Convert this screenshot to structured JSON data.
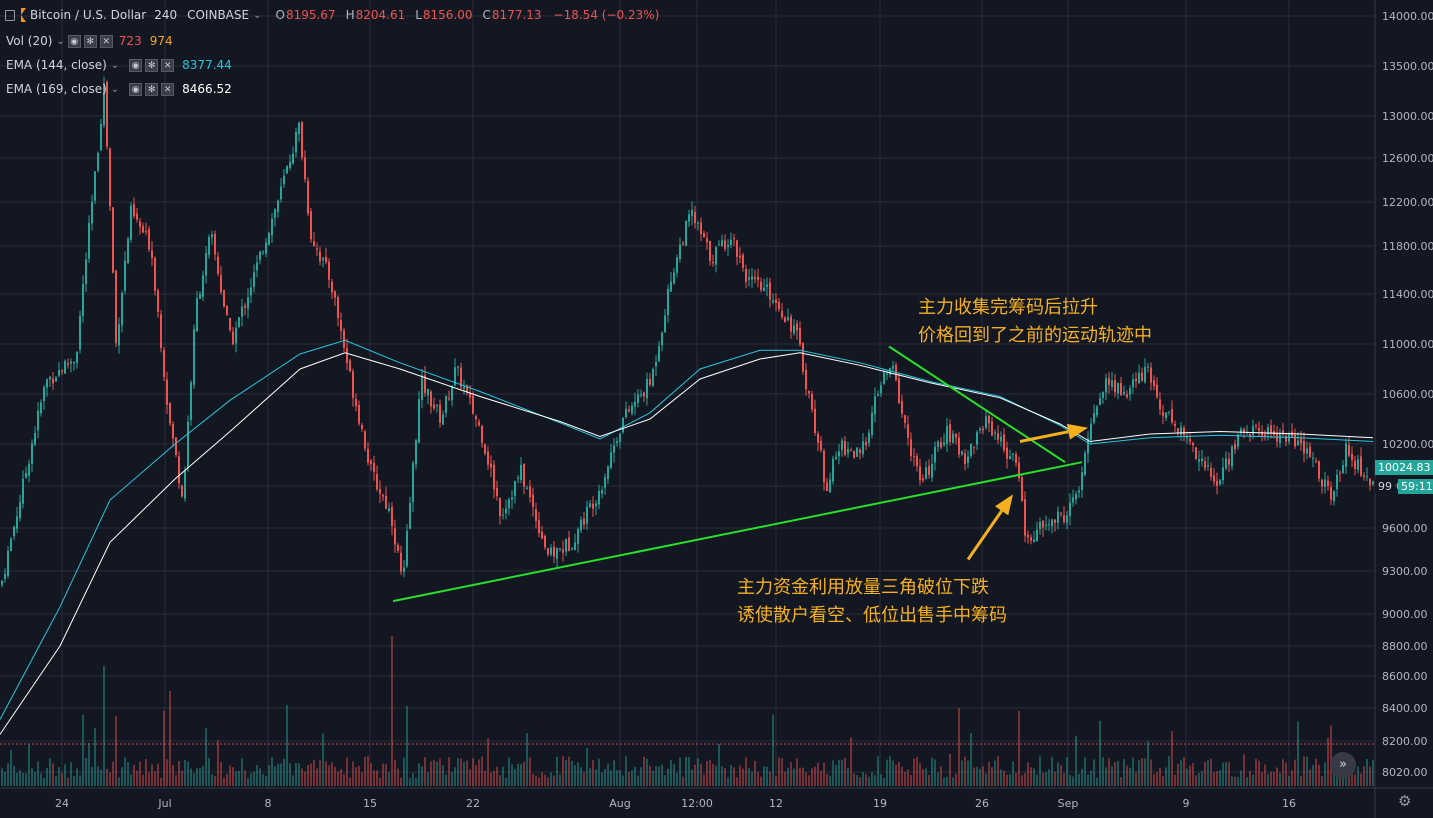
{
  "header": {
    "symbol": "Bitcoin / U.S. Dollar",
    "interval": "240",
    "exchange": "COINBASE",
    "o_label": "O",
    "o": "8195.67",
    "h_label": "H",
    "h": "8204.61",
    "l_label": "L",
    "l": "8156.00",
    "c_label": "C",
    "c": "8177.13",
    "change": "−18.54 (−0.23%)"
  },
  "indicators": [
    {
      "name": "Vol (20)",
      "values": [
        "723",
        "974"
      ],
      "colors": [
        "#ef5350",
        "#f5a623"
      ]
    },
    {
      "name": "EMA (144, close)",
      "value": "8377.44",
      "color": "#26c6da"
    },
    {
      "name": "EMA (169, close)",
      "value": "8466.52",
      "color": "#ffffff"
    }
  ],
  "icons": [
    "eye-icon",
    "gear-icon",
    "close-icon",
    "chevron-down-icon",
    "double-chevron-down-icon"
  ],
  "annotations": {
    "upper_line1": "主力收集完筹码后拉升",
    "upper_line2": "价格回到了之前的运动轨迹中",
    "lower_line1": "主力资金利用放量三角破位下跌",
    "lower_line2": "诱使散户看空、低位出售手中筹码"
  },
  "price_tags": {
    "last_price": "10024.83",
    "countdown_left": "99",
    "countdown": "59:11"
  },
  "colors": {
    "up": "#26a69a",
    "down": "#ef5350",
    "trendline": "#28e02a",
    "arrow": "#f5b020",
    "ema144": "#26c6da",
    "ema169": "#ffffff"
  },
  "chart_data": {
    "type": "candlestick",
    "ylim": [
      7900,
      14100
    ],
    "y_ticks": [
      "14000.00",
      "13500.00",
      "13000.00",
      "12600.00",
      "12200.00",
      "11800.00",
      "11400.00",
      "11000.00",
      "10600.00",
      "10200.00",
      "9900.00",
      "9600.00",
      "9300.00",
      "9000.00",
      "8800.00",
      "8600.00",
      "8400.00",
      "8200.00",
      "8020.00"
    ],
    "x_ticks": [
      "24",
      "Jul",
      "8",
      "15",
      "22",
      "Aug",
      "12:00",
      "12",
      "19",
      "26",
      "Sep",
      "9",
      "16"
    ],
    "close_path": [
      [
        0,
        9200
      ],
      [
        22,
        9900
      ],
      [
        45,
        10700
      ],
      [
        75,
        10900
      ],
      [
        95,
        12500
      ],
      [
        103,
        13300
      ],
      [
        115,
        11000
      ],
      [
        130,
        12100
      ],
      [
        150,
        11800
      ],
      [
        168,
        10400
      ],
      [
        182,
        9800
      ],
      [
        195,
        11300
      ],
      [
        210,
        11900
      ],
      [
        230,
        11000
      ],
      [
        255,
        11600
      ],
      [
        280,
        12300
      ],
      [
        298,
        12900
      ],
      [
        310,
        11900
      ],
      [
        330,
        11500
      ],
      [
        350,
        10700
      ],
      [
        370,
        10000
      ],
      [
        390,
        9700
      ],
      [
        402,
        9200
      ],
      [
        420,
        10700
      ],
      [
        440,
        10400
      ],
      [
        455,
        10800
      ],
      [
        480,
        10300
      ],
      [
        500,
        9700
      ],
      [
        520,
        10000
      ],
      [
        548,
        9400
      ],
      [
        570,
        9500
      ],
      [
        600,
        9900
      ],
      [
        622,
        10400
      ],
      [
        650,
        10700
      ],
      [
        672,
        11600
      ],
      [
        690,
        12100
      ],
      [
        710,
        11700
      ],
      [
        730,
        11900
      ],
      [
        748,
        11500
      ],
      [
        770,
        11400
      ],
      [
        795,
        11100
      ],
      [
        810,
        10500
      ],
      [
        825,
        9900
      ],
      [
        840,
        10200
      ],
      [
        860,
        10100
      ],
      [
        880,
        10700
      ],
      [
        892,
        10800
      ],
      [
        905,
        10300
      ],
      [
        920,
        9900
      ],
      [
        945,
        10300
      ],
      [
        965,
        10100
      ],
      [
        985,
        10400
      ],
      [
        1010,
        10100
      ],
      [
        1018,
        10000
      ],
      [
        1025,
        9500
      ],
      [
        1040,
        9600
      ],
      [
        1065,
        9700
      ],
      [
        1080,
        9900
      ],
      [
        1090,
        10400
      ],
      [
        1105,
        10700
      ],
      [
        1125,
        10600
      ],
      [
        1145,
        10800
      ],
      [
        1160,
        10500
      ],
      [
        1180,
        10300
      ],
      [
        1200,
        10100
      ],
      [
        1215,
        9900
      ],
      [
        1240,
        10300
      ],
      [
        1265,
        10300
      ],
      [
        1290,
        10250
      ],
      [
        1310,
        10100
      ],
      [
        1332,
        9800
      ],
      [
        1345,
        10200
      ],
      [
        1360,
        10000
      ],
      [
        1373,
        9900
      ]
    ],
    "ema144": [
      [
        0,
        8330
      ],
      [
        60,
        9050
      ],
      [
        110,
        9800
      ],
      [
        175,
        10200
      ],
      [
        230,
        10550
      ],
      [
        300,
        10920
      ],
      [
        345,
        11030
      ],
      [
        400,
        10850
      ],
      [
        480,
        10620
      ],
      [
        560,
        10370
      ],
      [
        600,
        10240
      ],
      [
        650,
        10450
      ],
      [
        700,
        10800
      ],
      [
        760,
        10950
      ],
      [
        800,
        10950
      ],
      [
        860,
        10850
      ],
      [
        930,
        10700
      ],
      [
        1000,
        10580
      ],
      [
        1060,
        10350
      ],
      [
        1090,
        10200
      ],
      [
        1150,
        10250
      ],
      [
        1220,
        10270
      ],
      [
        1300,
        10250
      ],
      [
        1373,
        10220
      ]
    ],
    "ema169": [
      [
        0,
        8240
      ],
      [
        60,
        8800
      ],
      [
        110,
        9500
      ],
      [
        175,
        9950
      ],
      [
        230,
        10300
      ],
      [
        300,
        10800
      ],
      [
        345,
        10930
      ],
      [
        400,
        10800
      ],
      [
        480,
        10580
      ],
      [
        560,
        10380
      ],
      [
        600,
        10260
      ],
      [
        650,
        10400
      ],
      [
        700,
        10720
      ],
      [
        760,
        10880
      ],
      [
        800,
        10930
      ],
      [
        860,
        10830
      ],
      [
        930,
        10690
      ],
      [
        1000,
        10570
      ],
      [
        1060,
        10360
      ],
      [
        1090,
        10220
      ],
      [
        1150,
        10280
      ],
      [
        1220,
        10300
      ],
      [
        1300,
        10280
      ],
      [
        1373,
        10250
      ]
    ],
    "trendlines": [
      {
        "from": [
          393,
          9090
        ],
        "to": [
          1082,
          10070
        ]
      },
      {
        "from": [
          889,
          10980
        ],
        "to": [
          1065,
          10070
        ]
      }
    ],
    "arrows": [
      {
        "from": [
          1020,
          10220
        ],
        "to": [
          1088,
          10330
        ]
      },
      {
        "from": [
          968,
          9380
        ],
        "to": [
          1013,
          9840
        ]
      }
    ]
  }
}
